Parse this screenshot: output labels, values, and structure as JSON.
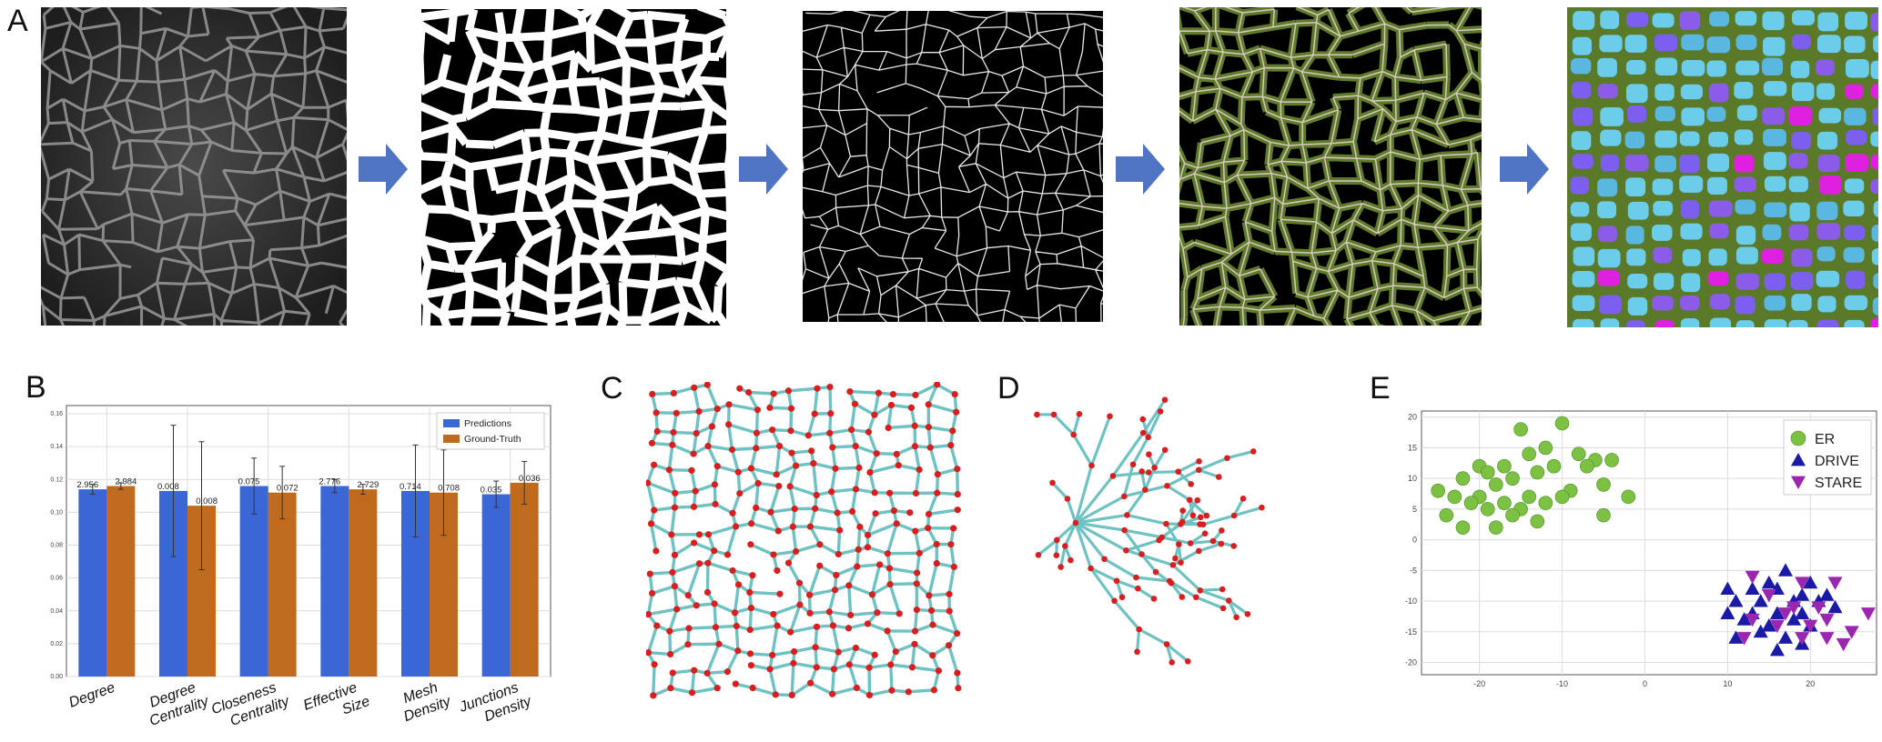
{
  "panels": {
    "a": "A",
    "b": "B",
    "c": "C",
    "d": "D",
    "e": "E"
  },
  "chart_data": [
    {
      "type": "bar",
      "categories": [
        "Degree",
        "Degree Centrality",
        "Closeness Centrality",
        "Effective Size",
        "Mesh Density",
        "Junctions Density"
      ],
      "category_lines": [
        [
          "Degree"
        ],
        [
          "Degree",
          "Centrality"
        ],
        [
          "Closeness",
          "Centrality"
        ],
        [
          "Effective",
          "Size"
        ],
        [
          "Mesh",
          "Density"
        ],
        [
          "Junctions",
          "Density"
        ]
      ],
      "series": [
        {
          "name": "Predictions",
          "values": [
            0.114,
            0.113,
            0.116,
            0.116,
            0.113,
            0.111
          ],
          "errors": [
            0.003,
            0.04,
            0.017,
            0.004,
            0.028,
            0.008
          ],
          "labels": [
            "2.956",
            "0.008",
            "0.075",
            "2.776",
            "0.714",
            "0.035"
          ],
          "color": "#3a66d6"
        },
        {
          "name": "Ground-Truth",
          "values": [
            0.116,
            0.104,
            0.112,
            0.114,
            0.112,
            0.118
          ],
          "errors": [
            0.002,
            0.039,
            0.016,
            0.003,
            0.026,
            0.013
          ],
          "labels": [
            "2.984",
            "0.008",
            "0.072",
            "2.729",
            "0.708",
            "0.036"
          ],
          "color": "#c06a1e"
        }
      ],
      "yticks": [
        "0.00",
        "0.02",
        "0.04",
        "0.06",
        "0.08",
        "0.10",
        "0.12",
        "0.14",
        "0.16"
      ],
      "ylim": [
        0,
        0.165
      ],
      "legend_position": "top-right",
      "grid": true
    },
    {
      "type": "scatter",
      "xlim": [
        -27,
        28
      ],
      "ylim": [
        -22,
        21
      ],
      "xticks": [
        "-20",
        "-10",
        "0",
        "10",
        "20"
      ],
      "yticks": [
        "20",
        "15",
        "10",
        "5",
        "0",
        "-5",
        "-10",
        "-15",
        "-20"
      ],
      "grid": true,
      "legend_position": "top-right",
      "series": [
        {
          "name": "ER",
          "marker": "circle",
          "color": "#7dc142",
          "x": [
            -10,
            -15,
            -12,
            -20,
            -17,
            -14,
            -8,
            -6,
            -4,
            -22,
            -19,
            -16,
            -11,
            -7,
            -5,
            -25,
            -18,
            -13,
            -9,
            -23,
            -20,
            -14,
            -10,
            -2,
            -17,
            -15,
            -12,
            -21,
            -19,
            -16,
            -5,
            -24,
            -13,
            -18,
            -22
          ],
          "y": [
            19,
            18,
            15,
            12,
            12,
            14,
            14,
            13,
            13,
            10,
            11,
            10,
            12,
            12,
            9,
            8,
            9,
            11,
            8,
            7,
            7,
            7,
            7,
            7,
            6,
            5,
            6,
            6,
            5,
            4,
            4,
            4,
            3,
            2,
            2
          ]
        },
        {
          "name": "DRIVE",
          "marker": "triangle-up",
          "color": "#1a1aa6",
          "x": [
            17,
            15,
            20,
            10,
            13,
            16,
            19,
            22,
            11,
            14,
            18,
            21,
            10,
            13,
            16,
            19,
            23,
            12,
            15,
            18,
            20,
            14,
            17,
            11,
            19,
            16
          ],
          "y": [
            -5,
            -7,
            -7,
            -8,
            -8,
            -8,
            -9,
            -9,
            -10,
            -10,
            -10,
            -10,
            -12,
            -12,
            -12,
            -12,
            -11,
            -13,
            -14,
            -13,
            -14,
            -15,
            -16,
            -16,
            -17,
            -18
          ]
        },
        {
          "name": "STARE",
          "marker": "triangle-down",
          "color": "#9b27b0",
          "x": [
            13,
            19,
            23,
            15,
            18,
            21,
            27,
            17,
            22,
            13,
            16,
            20,
            25,
            12,
            19,
            24,
            22
          ],
          "y": [
            -6,
            -7,
            -7,
            -9,
            -11,
            -11,
            -12,
            -12,
            -13,
            -13,
            -14,
            -14,
            -15,
            -16,
            -16,
            -17,
            -16
          ]
        }
      ]
    }
  ]
}
